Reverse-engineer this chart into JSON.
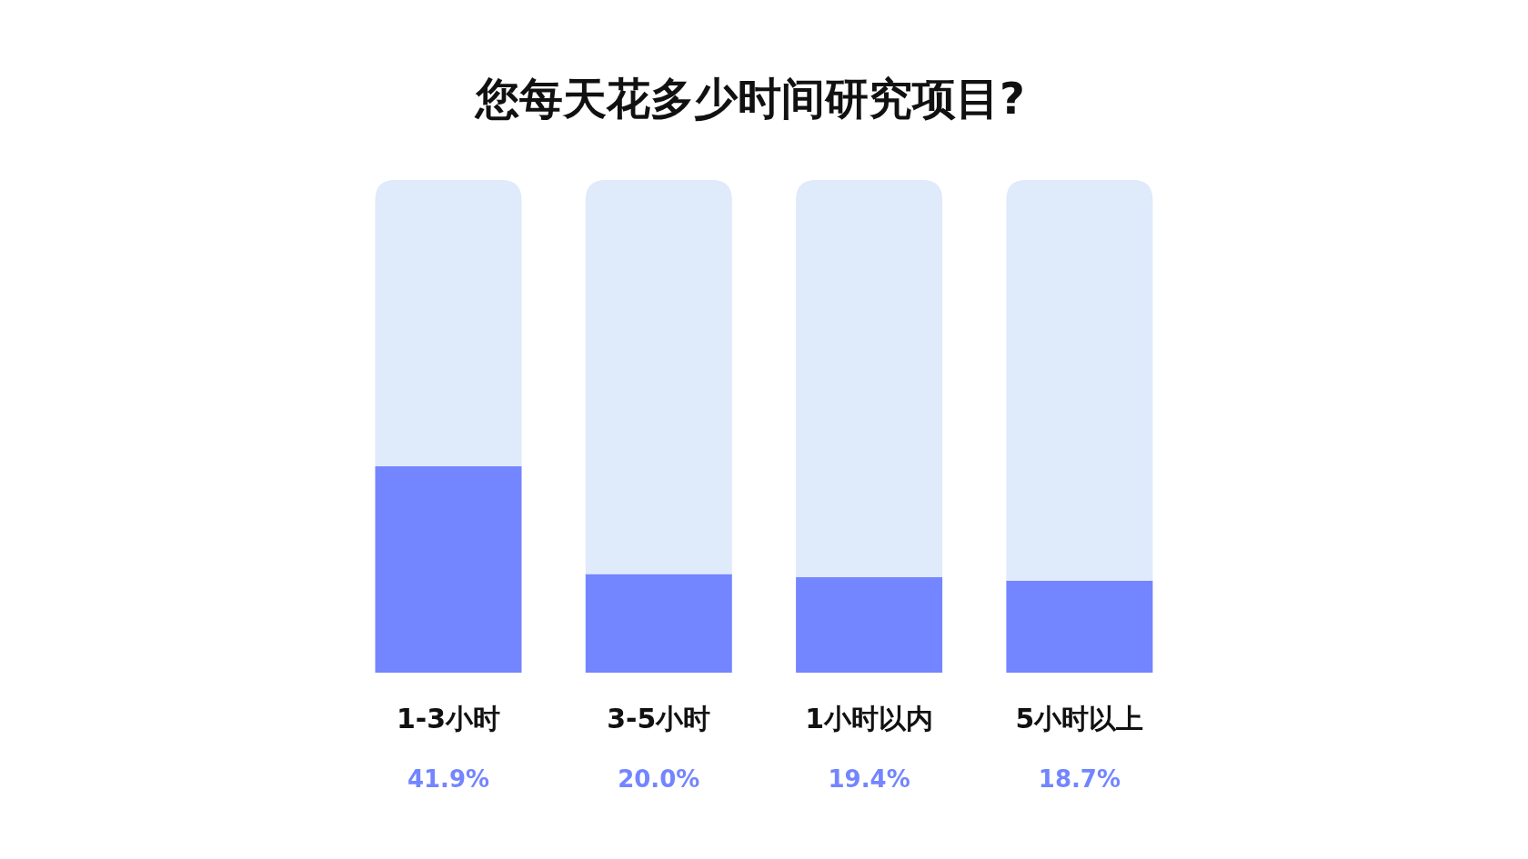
{
  "chart_data": {
    "type": "bar",
    "title": "您每天花多少时间研究项目?",
    "categories": [
      "1-3小时",
      "3-5小时",
      "1小时以内",
      "5小时以上"
    ],
    "stacked": true,
    "series": [
      {
        "color": "#7385ff",
        "values": [
          41.9,
          20.0,
          19.4,
          18.7
        ],
        "value_labels": [
          "41.9%",
          "20.0%",
          "19.4%",
          "18.7%"
        ]
      },
      {
        "color": "#dfeafb",
        "values": [
          58.1,
          80.0,
          80.6,
          81.3
        ]
      }
    ]
  }
}
